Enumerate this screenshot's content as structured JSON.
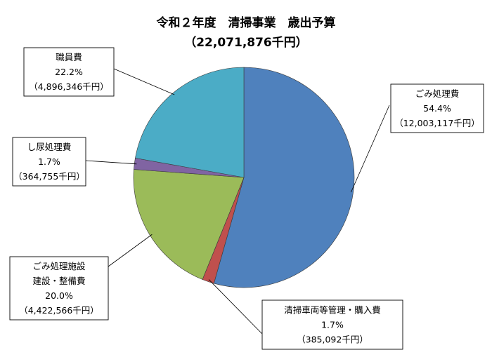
{
  "chart_data": {
    "type": "pie",
    "title": "令和２年度　清掃事業　歳出予算",
    "subtitle": "（22,071,876千円）",
    "start_angle_deg": 0,
    "direction": "clockwise",
    "legend": "none",
    "slices": [
      {
        "name": "ごみ処理費",
        "percent_label": "54.4%",
        "amount_label": "（12,003,117千円）",
        "value": 12003117,
        "color": "#4f81bd"
      },
      {
        "name": "清掃車両等管理・購入費",
        "percent_label": "1.7%",
        "amount_label": "（385,092千円）",
        "value": 385092,
        "color": "#c0504d"
      },
      {
        "name_lines": [
          "ごみ処理施設",
          "建設・整備費"
        ],
        "percent_label": "20.0%",
        "amount_label": "（4,422,566千円）",
        "value": 4422566,
        "color": "#9bbb59"
      },
      {
        "name": "し尿処理費",
        "percent_label": "1.7%",
        "amount_label": "（364,755千円）",
        "value": 364755,
        "color": "#8064a2"
      },
      {
        "name": "職員費",
        "percent_label": "22.2%",
        "amount_label": "（4,896,346千円）",
        "value": 4896346,
        "color": "#4bacc6"
      }
    ]
  }
}
